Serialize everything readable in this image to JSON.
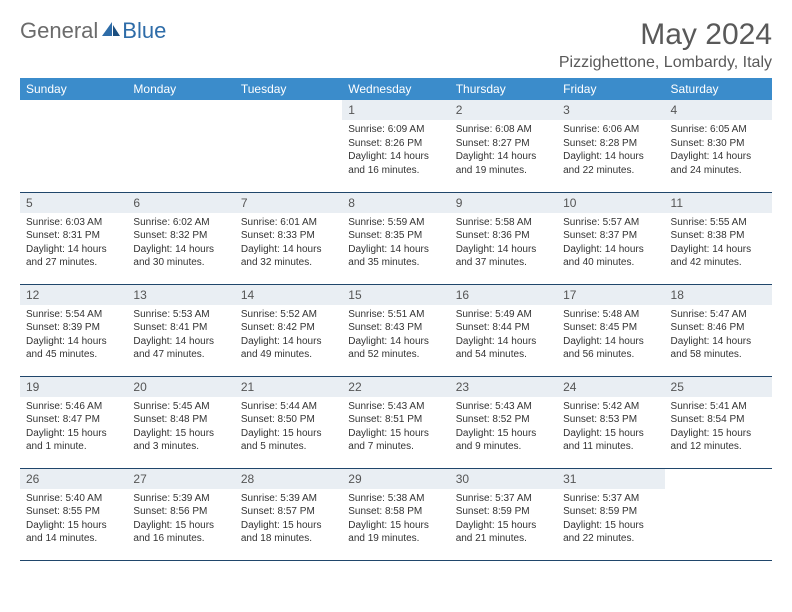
{
  "logo": {
    "text_general": "General",
    "text_blue": "Blue"
  },
  "title": "May 2024",
  "location": "Pizzighettone, Lombardy, Italy",
  "colors": {
    "header_bg": "#3b8ccb",
    "header_text": "#ffffff",
    "daynum_bg": "#e9eef3",
    "cell_border": "#20466b",
    "body_text": "#333333",
    "title_text": "#595959",
    "logo_gray": "#6b6b6b",
    "logo_blue": "#2e6ca8"
  },
  "day_headers": [
    "Sunday",
    "Monday",
    "Tuesday",
    "Wednesday",
    "Thursday",
    "Friday",
    "Saturday"
  ],
  "weeks": [
    [
      null,
      null,
      null,
      {
        "n": "1",
        "sr": "6:09 AM",
        "ss": "8:26 PM",
        "dl": "14 hours and 16 minutes."
      },
      {
        "n": "2",
        "sr": "6:08 AM",
        "ss": "8:27 PM",
        "dl": "14 hours and 19 minutes."
      },
      {
        "n": "3",
        "sr": "6:06 AM",
        "ss": "8:28 PM",
        "dl": "14 hours and 22 minutes."
      },
      {
        "n": "4",
        "sr": "6:05 AM",
        "ss": "8:30 PM",
        "dl": "14 hours and 24 minutes."
      }
    ],
    [
      {
        "n": "5",
        "sr": "6:03 AM",
        "ss": "8:31 PM",
        "dl": "14 hours and 27 minutes."
      },
      {
        "n": "6",
        "sr": "6:02 AM",
        "ss": "8:32 PM",
        "dl": "14 hours and 30 minutes."
      },
      {
        "n": "7",
        "sr": "6:01 AM",
        "ss": "8:33 PM",
        "dl": "14 hours and 32 minutes."
      },
      {
        "n": "8",
        "sr": "5:59 AM",
        "ss": "8:35 PM",
        "dl": "14 hours and 35 minutes."
      },
      {
        "n": "9",
        "sr": "5:58 AM",
        "ss": "8:36 PM",
        "dl": "14 hours and 37 minutes."
      },
      {
        "n": "10",
        "sr": "5:57 AM",
        "ss": "8:37 PM",
        "dl": "14 hours and 40 minutes."
      },
      {
        "n": "11",
        "sr": "5:55 AM",
        "ss": "8:38 PM",
        "dl": "14 hours and 42 minutes."
      }
    ],
    [
      {
        "n": "12",
        "sr": "5:54 AM",
        "ss": "8:39 PM",
        "dl": "14 hours and 45 minutes."
      },
      {
        "n": "13",
        "sr": "5:53 AM",
        "ss": "8:41 PM",
        "dl": "14 hours and 47 minutes."
      },
      {
        "n": "14",
        "sr": "5:52 AM",
        "ss": "8:42 PM",
        "dl": "14 hours and 49 minutes."
      },
      {
        "n": "15",
        "sr": "5:51 AM",
        "ss": "8:43 PM",
        "dl": "14 hours and 52 minutes."
      },
      {
        "n": "16",
        "sr": "5:49 AM",
        "ss": "8:44 PM",
        "dl": "14 hours and 54 minutes."
      },
      {
        "n": "17",
        "sr": "5:48 AM",
        "ss": "8:45 PM",
        "dl": "14 hours and 56 minutes."
      },
      {
        "n": "18",
        "sr": "5:47 AM",
        "ss": "8:46 PM",
        "dl": "14 hours and 58 minutes."
      }
    ],
    [
      {
        "n": "19",
        "sr": "5:46 AM",
        "ss": "8:47 PM",
        "dl": "15 hours and 1 minute."
      },
      {
        "n": "20",
        "sr": "5:45 AM",
        "ss": "8:48 PM",
        "dl": "15 hours and 3 minutes."
      },
      {
        "n": "21",
        "sr": "5:44 AM",
        "ss": "8:50 PM",
        "dl": "15 hours and 5 minutes."
      },
      {
        "n": "22",
        "sr": "5:43 AM",
        "ss": "8:51 PM",
        "dl": "15 hours and 7 minutes."
      },
      {
        "n": "23",
        "sr": "5:43 AM",
        "ss": "8:52 PM",
        "dl": "15 hours and 9 minutes."
      },
      {
        "n": "24",
        "sr": "5:42 AM",
        "ss": "8:53 PM",
        "dl": "15 hours and 11 minutes."
      },
      {
        "n": "25",
        "sr": "5:41 AM",
        "ss": "8:54 PM",
        "dl": "15 hours and 12 minutes."
      }
    ],
    [
      {
        "n": "26",
        "sr": "5:40 AM",
        "ss": "8:55 PM",
        "dl": "15 hours and 14 minutes."
      },
      {
        "n": "27",
        "sr": "5:39 AM",
        "ss": "8:56 PM",
        "dl": "15 hours and 16 minutes."
      },
      {
        "n": "28",
        "sr": "5:39 AM",
        "ss": "8:57 PM",
        "dl": "15 hours and 18 minutes."
      },
      {
        "n": "29",
        "sr": "5:38 AM",
        "ss": "8:58 PM",
        "dl": "15 hours and 19 minutes."
      },
      {
        "n": "30",
        "sr": "5:37 AM",
        "ss": "8:59 PM",
        "dl": "15 hours and 21 minutes."
      },
      {
        "n": "31",
        "sr": "5:37 AM",
        "ss": "8:59 PM",
        "dl": "15 hours and 22 minutes."
      },
      null
    ]
  ],
  "labels": {
    "sunrise": "Sunrise:",
    "sunset": "Sunset:",
    "daylight": "Daylight:"
  }
}
